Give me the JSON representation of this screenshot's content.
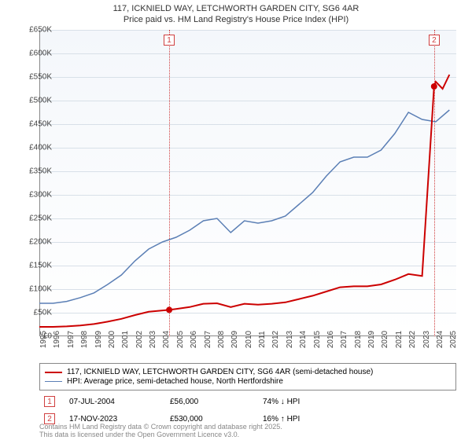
{
  "title_line1": "117, ICKNIELD WAY, LETCHWORTH GARDEN CITY, SG6 4AR",
  "title_line2": "Price paid vs. HM Land Registry's House Price Index (HPI)",
  "chart": {
    "type": "line",
    "x_min": 1995,
    "x_max": 2025.5,
    "y_min": 0,
    "y_max": 650000,
    "y_tick_step": 50000,
    "y_tick_labels": [
      "£0",
      "£50K",
      "£100K",
      "£150K",
      "£200K",
      "£250K",
      "£300K",
      "£350K",
      "£400K",
      "£450K",
      "£500K",
      "£550K",
      "£600K",
      "£650K"
    ],
    "x_ticks": [
      1995,
      1996,
      1997,
      1998,
      1999,
      2000,
      2001,
      2002,
      2003,
      2004,
      2005,
      2006,
      2007,
      2008,
      2009,
      2010,
      2011,
      2012,
      2013,
      2014,
      2015,
      2016,
      2017,
      2018,
      2019,
      2020,
      2021,
      2022,
      2023,
      2024,
      2025
    ],
    "background_color": "#f4f7fb",
    "grid_color": "#d8e0e8",
    "axis_color": "#888888",
    "tick_font_size": 10,
    "series": {
      "hpi": {
        "label": "HPI: Average price, semi-detached house, North Hertfordshire",
        "color": "#5b7fb5",
        "line_width": 1.5,
        "points": [
          [
            1995,
            70000
          ],
          [
            1996,
            70000
          ],
          [
            1997,
            74000
          ],
          [
            1998,
            82000
          ],
          [
            1999,
            92000
          ],
          [
            2000,
            110000
          ],
          [
            2001,
            130000
          ],
          [
            2002,
            160000
          ],
          [
            2003,
            185000
          ],
          [
            2004,
            200000
          ],
          [
            2005,
            210000
          ],
          [
            2006,
            225000
          ],
          [
            2007,
            245000
          ],
          [
            2008,
            250000
          ],
          [
            2009,
            220000
          ],
          [
            2010,
            245000
          ],
          [
            2011,
            240000
          ],
          [
            2012,
            245000
          ],
          [
            2013,
            255000
          ],
          [
            2014,
            280000
          ],
          [
            2015,
            305000
          ],
          [
            2016,
            340000
          ],
          [
            2017,
            370000
          ],
          [
            2018,
            380000
          ],
          [
            2019,
            380000
          ],
          [
            2020,
            395000
          ],
          [
            2021,
            430000
          ],
          [
            2022,
            475000
          ],
          [
            2023,
            460000
          ],
          [
            2024,
            455000
          ],
          [
            2025,
            480000
          ]
        ]
      },
      "property": {
        "label": "117, ICKNIELD WAY, LETCHWORTH GARDEN CITY, SG6 4AR (semi-detached house)",
        "color": "#cc0000",
        "line_width": 2,
        "points": [
          [
            1995,
            20000
          ],
          [
            1996,
            20000
          ],
          [
            1997,
            21000
          ],
          [
            1998,
            23000
          ],
          [
            1999,
            26000
          ],
          [
            2000,
            31000
          ],
          [
            2001,
            37000
          ],
          [
            2002,
            45000
          ],
          [
            2003,
            52000
          ],
          [
            2004.5,
            56000
          ],
          [
            2005,
            58000
          ],
          [
            2006,
            62000
          ],
          [
            2007,
            69000
          ],
          [
            2008,
            70000
          ],
          [
            2009,
            62000
          ],
          [
            2010,
            69000
          ],
          [
            2011,
            67000
          ],
          [
            2012,
            69000
          ],
          [
            2013,
            72000
          ],
          [
            2014,
            79000
          ],
          [
            2015,
            86000
          ],
          [
            2016,
            95000
          ],
          [
            2017,
            104000
          ],
          [
            2018,
            106000
          ],
          [
            2019,
            106000
          ],
          [
            2020,
            110000
          ],
          [
            2021,
            120000
          ],
          [
            2022,
            132000
          ],
          [
            2023,
            128000
          ],
          [
            2023.88,
            530000
          ],
          [
            2024,
            540000
          ],
          [
            2024.5,
            525000
          ],
          [
            2025,
            555000
          ]
        ]
      }
    },
    "sales": [
      {
        "n": "1",
        "year": 2004.5,
        "price": 56000,
        "date": "07-JUL-2004",
        "price_label": "£56,000",
        "delta": "74% ↓ HPI"
      },
      {
        "n": "2",
        "year": 2023.88,
        "price": 530000,
        "date": "17-NOV-2023",
        "price_label": "£530,000",
        "delta": "16% ↑ HPI"
      }
    ],
    "marker_color": "#d04040"
  },
  "footer_line1": "Contains HM Land Registry data © Crown copyright and database right 2025.",
  "footer_line2": "This data is licensed under the Open Government Licence v3.0."
}
